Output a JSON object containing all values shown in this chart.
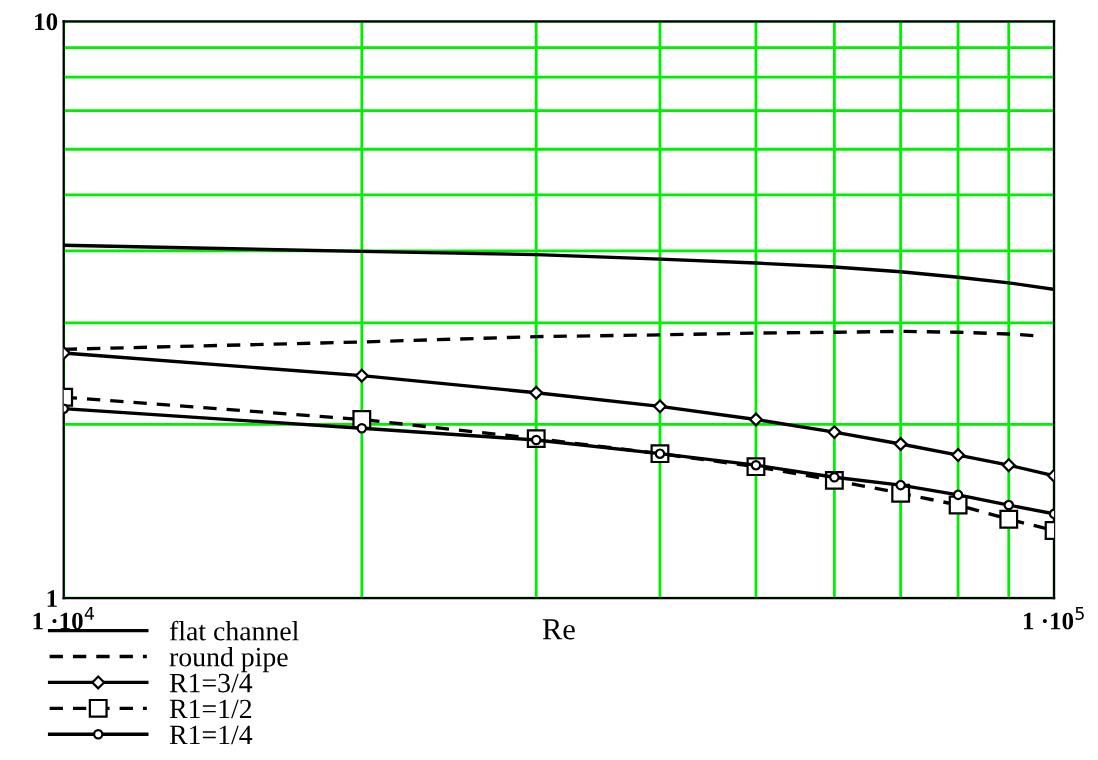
{
  "chart_data": {
    "type": "line",
    "xlabel": "Re",
    "log": "xy",
    "grid": true,
    "legend": "bottom",
    "x": [
      10000,
      20000,
      30000,
      40000,
      50000,
      60000,
      70000,
      80000,
      90000,
      100000
    ],
    "xlim": [
      10000,
      100000
    ],
    "ylim": [
      1,
      10
    ],
    "xticks": [
      {
        "value": 10000,
        "label": "1 ·10$^{4}$"
      },
      {
        "value": 20000,
        "label": null
      },
      {
        "value": 30000,
        "label": null
      },
      {
        "value": 40000,
        "label": null
      },
      {
        "value": 50000,
        "label": null
      },
      {
        "value": 60000,
        "label": null
      },
      {
        "value": 70000,
        "label": null
      },
      {
        "value": 80000,
        "label": null
      },
      {
        "value": 90000,
        "label": null
      },
      {
        "value": 100000,
        "label": "1 ·10$^{5}$"
      }
    ],
    "yticks": [
      1,
      {
        "value": 2,
        "label": null
      },
      {
        "value": 3,
        "label": null
      },
      {
        "value": 4,
        "label": null
      },
      {
        "value": 5,
        "label": null
      },
      {
        "value": 6,
        "label": null
      },
      {
        "value": 7,
        "label": null
      },
      {
        "value": 8,
        "label": null
      },
      {
        "value": 9,
        "label": null
      },
      10
    ],
    "series": [
      {
        "name": "flat channel",
        "color": "#000000",
        "line_style": "solid",
        "marker": "none",
        "values": [
          4.09,
          3.99,
          3.94,
          3.87,
          3.81,
          3.75,
          3.68,
          3.6,
          3.52,
          3.43
        ]
      },
      {
        "name": "round pipe",
        "color": "#000000",
        "line_style": "dashed",
        "marker": "none",
        "x": [
          10000,
          20000,
          30000,
          40000,
          50000,
          60000,
          70000,
          80000,
          90000,
          96000
        ],
        "values": [
          2.7,
          2.78,
          2.84,
          2.86,
          2.88,
          2.89,
          2.9,
          2.89,
          2.87,
          2.85
        ]
      },
      {
        "name": "R1=3/4",
        "color": "#000000",
        "line_style": "solid",
        "marker": "diamond",
        "values": [
          2.66,
          2.43,
          2.27,
          2.15,
          2.04,
          1.94,
          1.85,
          1.77,
          1.7,
          1.63
        ]
      },
      {
        "name": "R1=1/2",
        "color": "#000000",
        "line_style": "dashed",
        "marker": "square",
        "values": [
          2.23,
          2.04,
          1.89,
          1.78,
          1.69,
          1.6,
          1.52,
          1.45,
          1.37,
          1.31
        ]
      },
      {
        "name": "R1=1/4",
        "color": "#000000",
        "line_style": "solid",
        "marker": "circle",
        "values": [
          2.13,
          1.97,
          1.88,
          1.78,
          1.7,
          1.62,
          1.57,
          1.51,
          1.45,
          1.4
        ]
      }
    ]
  }
}
